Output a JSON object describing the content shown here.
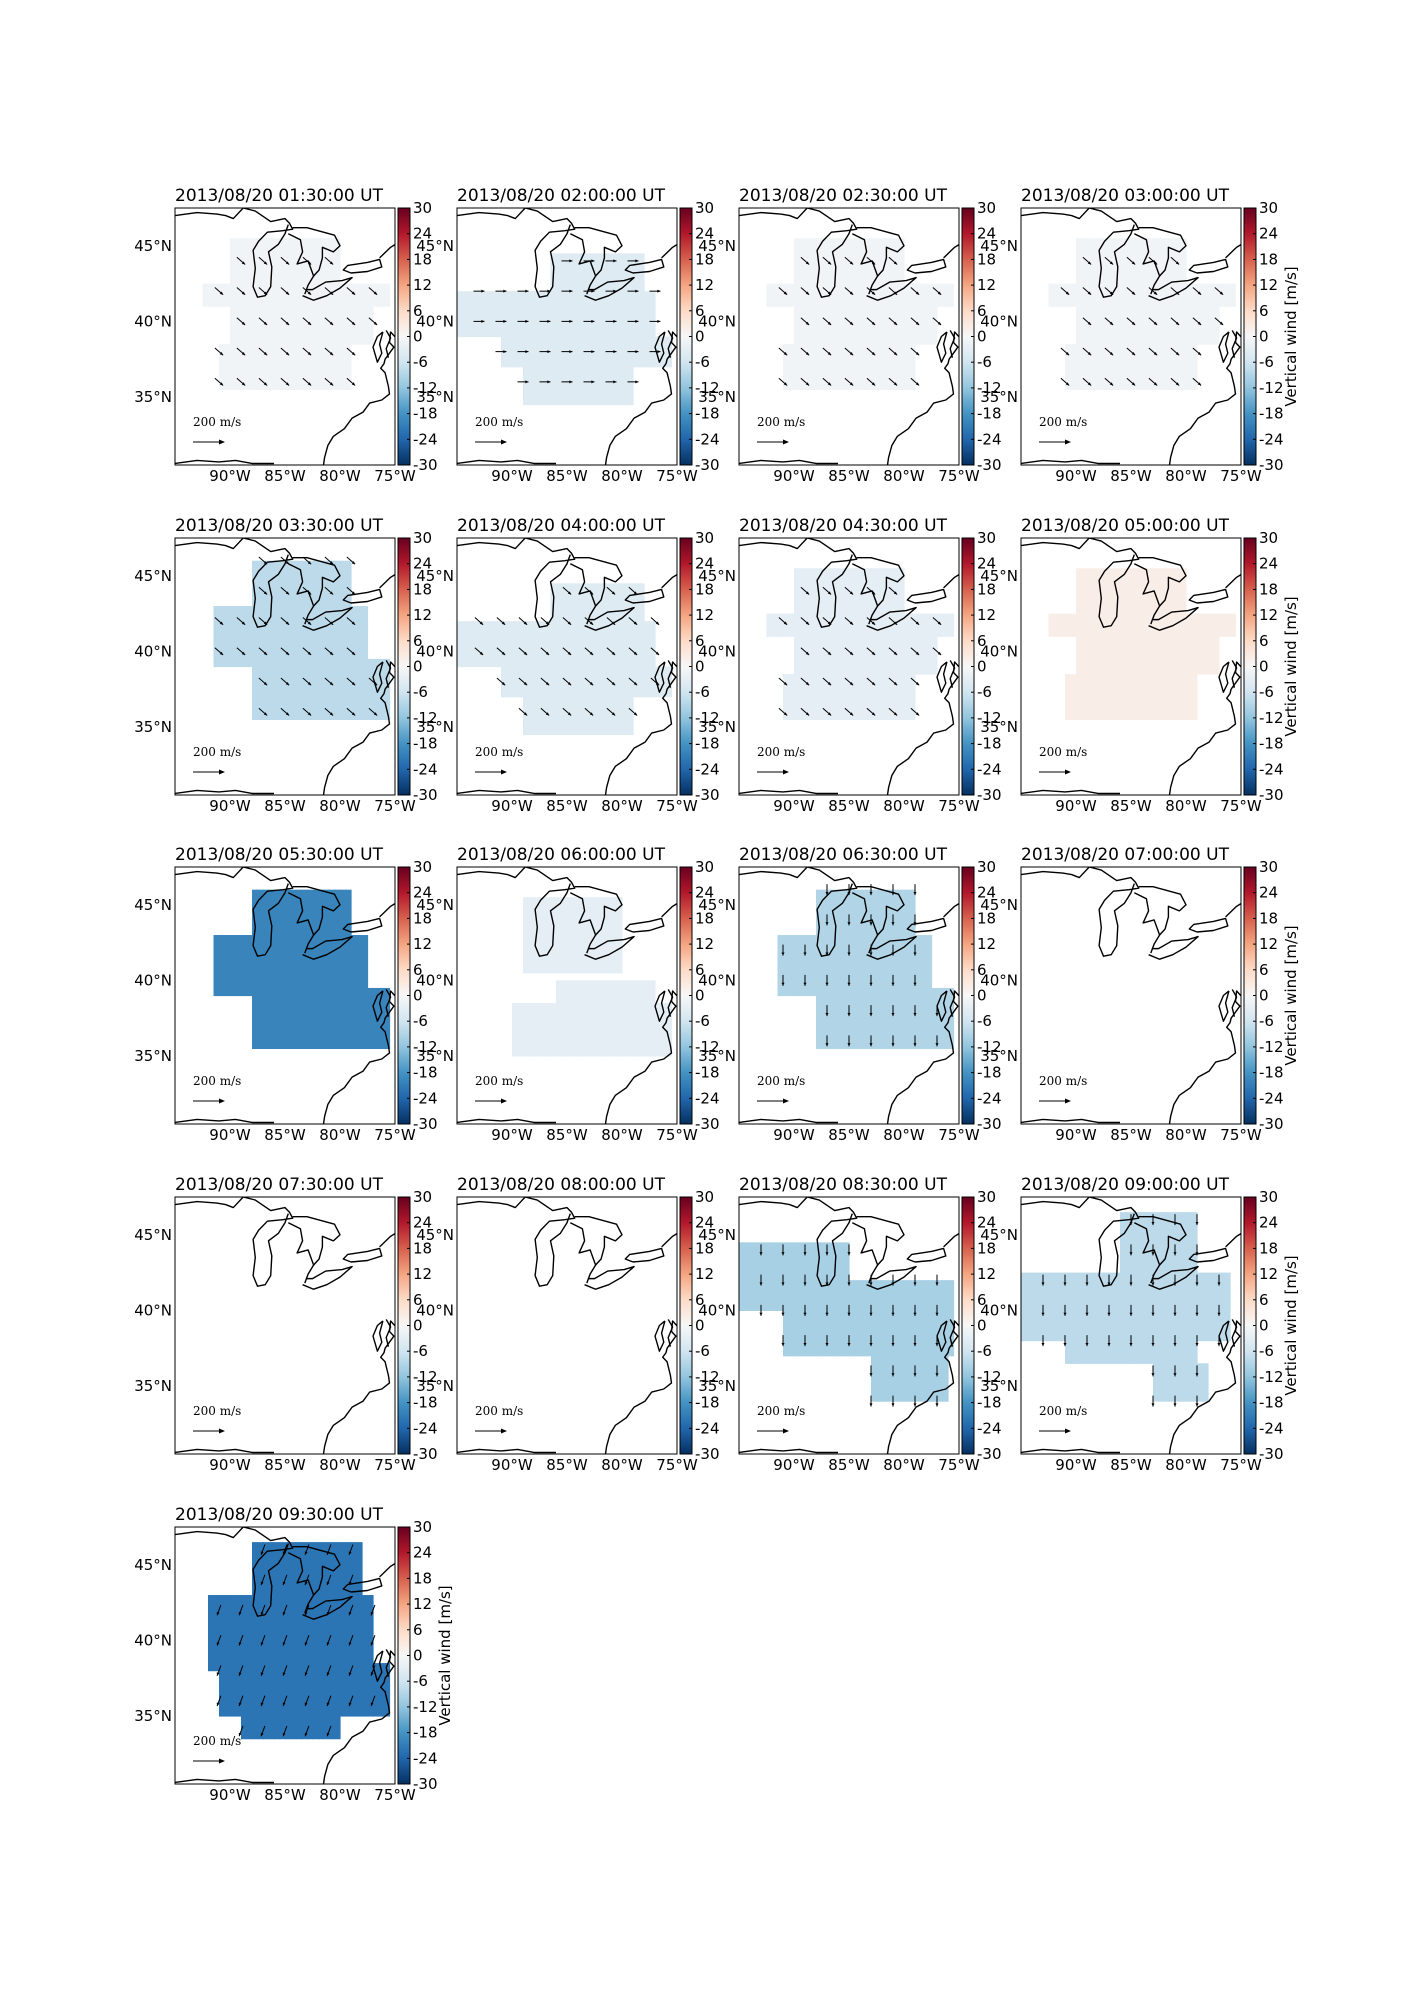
{
  "chart_data": {
    "type": "heatmap",
    "colorbar": {
      "label": "Vertical wind [m/s]",
      "ticks": [
        30,
        24,
        18,
        12,
        6,
        0,
        -6,
        -12,
        -18,
        -24,
        -30
      ],
      "range": [
        -30,
        30
      ],
      "colormap": "RdBu_r"
    },
    "lon_ticks": [
      "90°W",
      "85°W",
      "80°W",
      "75°W"
    ],
    "lon_tick_values": [
      -90,
      -85,
      -80,
      -75
    ],
    "lat_ticks": [
      "45°N",
      "40°N",
      "35°N"
    ],
    "lat_tick_values": [
      45,
      40,
      35
    ],
    "lon_range": [
      -95,
      -75
    ],
    "lat_range": [
      30.5,
      47.5
    ],
    "reference_arrow": {
      "value": 200,
      "label": "200 m/s"
    },
    "panels": [
      {
        "title": "2013/08/20 01:30:00 UT",
        "vertical_wind": -1,
        "region": "A",
        "arrow_dir": "southeast",
        "colorbar_label": false
      },
      {
        "title": "2013/08/20 02:00:00 UT",
        "vertical_wind": -4,
        "region": "B",
        "arrow_dir": "east",
        "colorbar_label": false
      },
      {
        "title": "2013/08/20 02:30:00 UT",
        "vertical_wind": -1,
        "region": "A",
        "arrow_dir": "southeast",
        "colorbar_label": false
      },
      {
        "title": "2013/08/20 03:00:00 UT",
        "vertical_wind": -1,
        "region": "A",
        "arrow_dir": "southeast",
        "colorbar_label": true
      },
      {
        "title": "2013/08/20 03:30:00 UT",
        "vertical_wind": -8,
        "region": "C",
        "arrow_dir": "southeast",
        "colorbar_label": false
      },
      {
        "title": "2013/08/20 04:00:00 UT",
        "vertical_wind": -4,
        "region": "B",
        "arrow_dir": "southeast",
        "colorbar_label": false
      },
      {
        "title": "2013/08/20 04:30:00 UT",
        "vertical_wind": -3,
        "region": "A",
        "arrow_dir": "southeast",
        "colorbar_label": false
      },
      {
        "title": "2013/08/20 05:00:00 UT",
        "vertical_wind": 2,
        "region": "A",
        "arrow_dir": "none",
        "colorbar_label": true
      },
      {
        "title": "2013/08/20 05:30:00 UT",
        "vertical_wind": -20,
        "region": "C",
        "arrow_dir": "none",
        "colorbar_label": false
      },
      {
        "title": "2013/08/20 06:00:00 UT",
        "vertical_wind": -3,
        "region": "D",
        "arrow_dir": "none",
        "colorbar_label": false
      },
      {
        "title": "2013/08/20 06:30:00 UT",
        "vertical_wind": -9,
        "region": "C",
        "arrow_dir": "south",
        "colorbar_label": false
      },
      {
        "title": "2013/08/20 07:00:00 UT",
        "vertical_wind": null,
        "region": "none",
        "arrow_dir": "none",
        "colorbar_label": true
      },
      {
        "title": "2013/08/20 07:30:00 UT",
        "vertical_wind": null,
        "region": "none",
        "arrow_dir": "none",
        "colorbar_label": false
      },
      {
        "title": "2013/08/20 08:00:00 UT",
        "vertical_wind": null,
        "region": "none",
        "arrow_dir": "none",
        "colorbar_label": false
      },
      {
        "title": "2013/08/20 08:30:00 UT",
        "vertical_wind": -10,
        "region": "E",
        "arrow_dir": "south",
        "colorbar_label": false
      },
      {
        "title": "2013/08/20 09:00:00 UT",
        "vertical_wind": -8,
        "region": "F",
        "arrow_dir": "south",
        "colorbar_label": true
      },
      {
        "title": "2013/08/20 09:30:00 UT",
        "vertical_wind": -22,
        "region": "G",
        "arrow_dir": "southwest",
        "colorbar_label": true
      }
    ]
  }
}
